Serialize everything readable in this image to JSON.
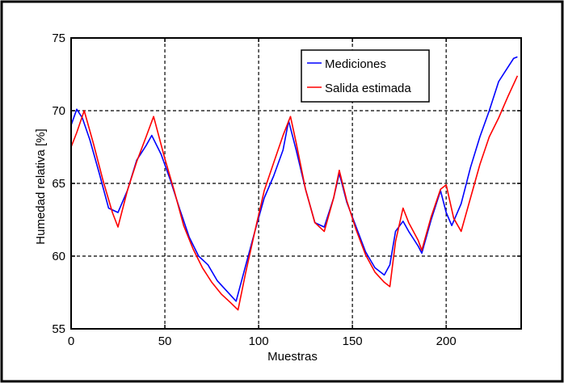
{
  "chart_data": {
    "type": "line",
    "title": "",
    "xlabel": "Muestras",
    "ylabel": "Humedad relativa [%]",
    "xlim": [
      0,
      240
    ],
    "ylim": [
      55,
      75
    ],
    "xticks": [
      0,
      50,
      100,
      150,
      200
    ],
    "yticks": [
      55,
      60,
      65,
      70,
      75
    ],
    "grid": true,
    "legend_position": "top-right",
    "series": [
      {
        "name": "Mediciones",
        "color": "#0000ff",
        "x": [
          0,
          3,
          6,
          10,
          15,
          20,
          25,
          30,
          35,
          40,
          43,
          48,
          53,
          58,
          63,
          68,
          73,
          78,
          83,
          88,
          93,
          98,
          103,
          108,
          113,
          116,
          120,
          125,
          130,
          135,
          140,
          143,
          147,
          152,
          157,
          162,
          167,
          170,
          173,
          177,
          180,
          185,
          187,
          192,
          197,
          200,
          203,
          208,
          213,
          218,
          223,
          228,
          232,
          236,
          238
        ],
        "y": [
          69.0,
          70.1,
          69.5,
          68.0,
          65.7,
          63.3,
          63.0,
          64.5,
          66.6,
          67.6,
          68.3,
          67.0,
          65.2,
          63.2,
          61.3,
          60.0,
          59.4,
          58.3,
          57.6,
          56.9,
          59.3,
          61.7,
          64.0,
          65.5,
          67.3,
          69.3,
          67.3,
          64.6,
          62.3,
          62.0,
          64.0,
          65.7,
          63.7,
          62.0,
          60.3,
          59.2,
          58.7,
          59.4,
          61.7,
          62.4,
          61.7,
          60.7,
          60.2,
          62.5,
          64.5,
          63.0,
          62.1,
          63.6,
          66.1,
          68.2,
          70.0,
          72.0,
          72.8,
          73.6,
          73.7
        ]
      },
      {
        "name": "Salida estimada",
        "color": "#ff0000",
        "x": [
          0,
          3,
          7,
          12,
          17,
          22,
          25,
          30,
          35,
          40,
          44,
          50,
          55,
          60,
          65,
          70,
          75,
          80,
          85,
          89,
          93,
          98,
          103,
          108,
          113,
          117,
          120,
          125,
          130,
          135,
          140,
          143,
          147,
          152,
          157,
          162,
          167,
          170,
          173,
          177,
          180,
          185,
          187,
          192,
          197,
          200,
          204,
          208,
          213,
          218,
          223,
          228,
          233,
          238
        ],
        "y": [
          67.5,
          68.5,
          70.0,
          67.7,
          65.2,
          63.0,
          62.0,
          64.5,
          66.5,
          68.2,
          69.6,
          66.7,
          64.5,
          62.1,
          60.5,
          59.2,
          58.2,
          57.4,
          56.8,
          56.3,
          58.8,
          61.7,
          64.5,
          66.4,
          68.3,
          69.6,
          67.8,
          64.6,
          62.3,
          61.7,
          64.0,
          65.9,
          63.8,
          61.8,
          60.1,
          58.9,
          58.2,
          57.9,
          61.0,
          63.3,
          62.3,
          61.1,
          60.4,
          62.7,
          64.6,
          64.9,
          62.6,
          61.7,
          64.0,
          66.3,
          68.2,
          69.5,
          71.0,
          72.4
        ]
      }
    ]
  }
}
